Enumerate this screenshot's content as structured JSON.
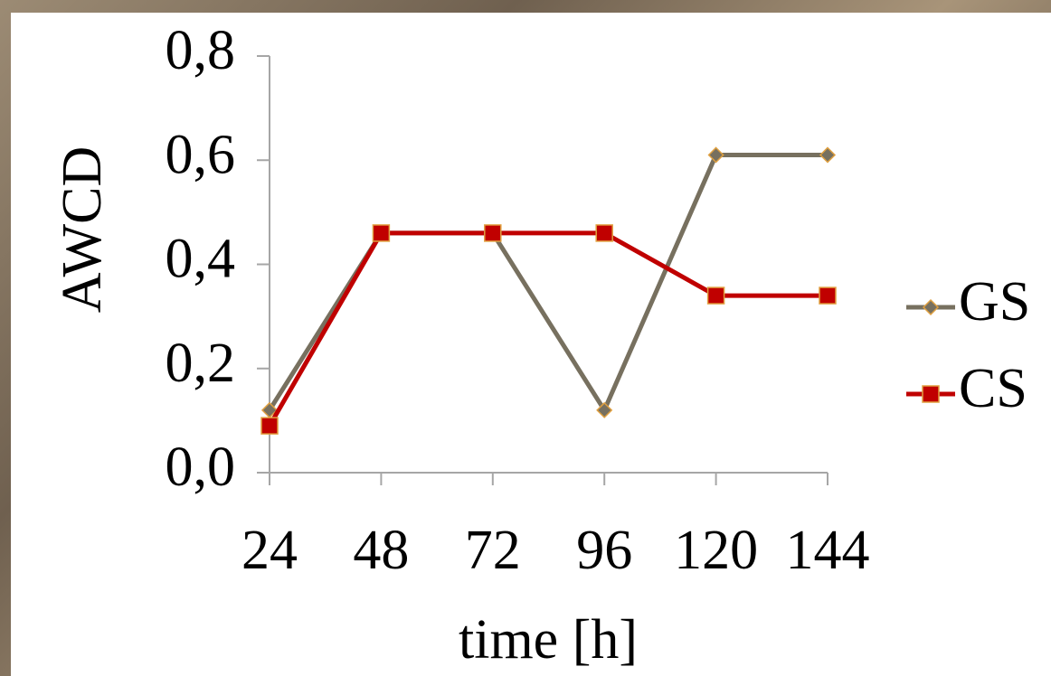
{
  "chart_data": {
    "type": "line",
    "y_label": "AWCD",
    "x_label": "time [h]",
    "categories": [
      "24",
      "48",
      "72",
      "96",
      "120",
      "144"
    ],
    "series": [
      {
        "name": "GS",
        "color": "#77705f",
        "marker": "diamond",
        "values": [
          0.12,
          0.46,
          0.46,
          0.12,
          0.61,
          0.61
        ]
      },
      {
        "name": "CS",
        "color": "#c00000",
        "marker": "square",
        "values": [
          0.09,
          0.46,
          0.46,
          0.46,
          0.34,
          0.34
        ]
      }
    ],
    "ylim": [
      0,
      0.8
    ],
    "yticks": [
      {
        "value": 0,
        "label": "0,0"
      },
      {
        "value": 0.2,
        "label": "0,2"
      },
      {
        "value": 0.4,
        "label": "0,4"
      },
      {
        "value": 0.6,
        "label": "0,6"
      },
      {
        "value": 0.8,
        "label": "0,8"
      }
    ],
    "grid": false,
    "legend": "right"
  }
}
